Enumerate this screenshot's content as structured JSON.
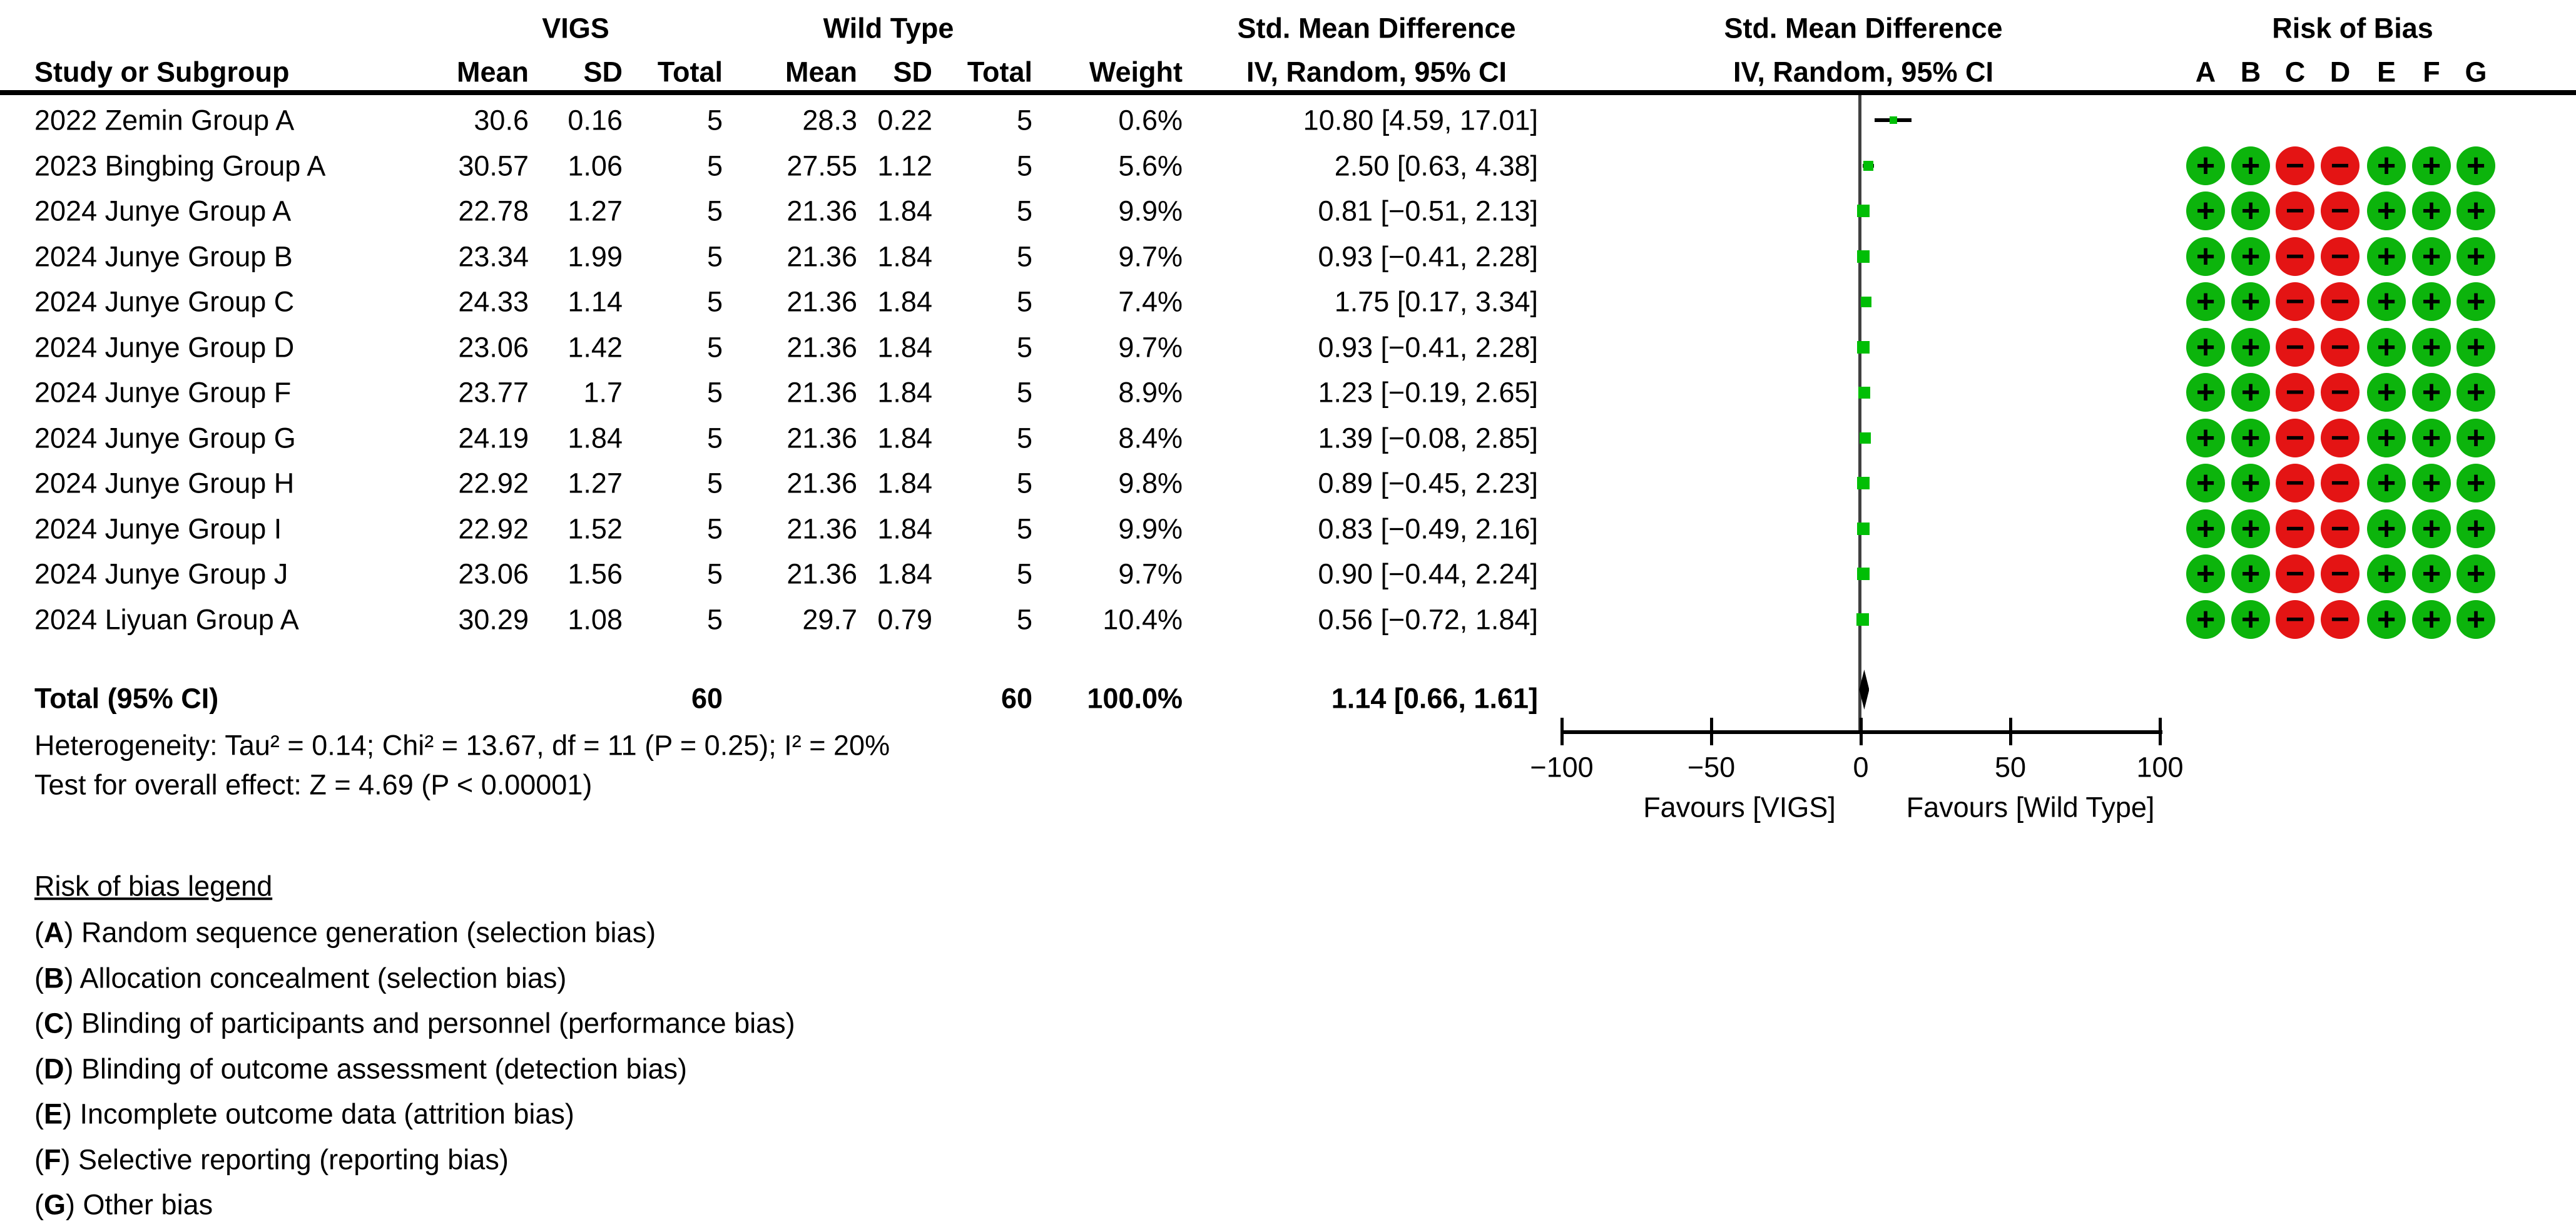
{
  "colors": {
    "rob_low_risk_green": "#0CB40C",
    "rob_high_risk_red": "#E41414",
    "marker_green": "#00BE06",
    "line_black": "#000000",
    "zero_line_gray": "#404040"
  },
  "header": {
    "study_col": "Study or Subgroup",
    "group1": "VIGS",
    "group2": "Wild Type",
    "mean": "Mean",
    "sd": "SD",
    "total": "Total",
    "weight": "Weight",
    "smd_col_line1": "Std. Mean Difference",
    "smd_col_line2": "IV, Random, 95% CI",
    "plot_col_line1": "Std. Mean Difference",
    "plot_col_line2": "IV, Random, 95% CI",
    "rob_title": "Risk of Bias",
    "rob_letters": [
      "A",
      "B",
      "C",
      "D",
      "E",
      "F",
      "G"
    ]
  },
  "chart_data": {
    "type": "scatter",
    "subtype": "forest-plot-meta-analysis",
    "effect_measure": "Std. Mean Difference (IV, Random, 95% CI)",
    "x_axis": {
      "range": [
        -100,
        100
      ],
      "ticks": [
        -100,
        -50,
        0,
        50,
        100
      ],
      "tick_labels": [
        "−100",
        "−50",
        "0",
        "50",
        "100"
      ]
    },
    "favours_left": "Favours [VIGS]",
    "favours_right": "Favours [Wild Type]",
    "studies": [
      {
        "name": "2022 Zemin Group A",
        "vigs": {
          "mean": "30.6",
          "sd": "0.16",
          "total": "5"
        },
        "wild": {
          "mean": "28.3",
          "sd": "0.22",
          "total": "5"
        },
        "weight": "0.6%",
        "weight_value": 0.6,
        "smd": 10.8,
        "ci": [
          4.59,
          17.01
        ],
        "ci_text": "10.80 [4.59, 17.01]",
        "risk_of_bias": null
      },
      {
        "name": "2023 Bingbing Group A",
        "vigs": {
          "mean": "30.57",
          "sd": "1.06",
          "total": "5"
        },
        "wild": {
          "mean": "27.55",
          "sd": "1.12",
          "total": "5"
        },
        "weight": "5.6%",
        "weight_value": 5.6,
        "smd": 2.5,
        "ci": [
          0.63,
          4.38
        ],
        "ci_text": "2.50 [0.63, 4.38]",
        "risk_of_bias": [
          "+",
          "+",
          "-",
          "-",
          "+",
          "+",
          "+"
        ]
      },
      {
        "name": "2024 Junye Group A",
        "vigs": {
          "mean": "22.78",
          "sd": "1.27",
          "total": "5"
        },
        "wild": {
          "mean": "21.36",
          "sd": "1.84",
          "total": "5"
        },
        "weight": "9.9%",
        "weight_value": 9.9,
        "smd": 0.81,
        "ci": [
          -0.51,
          2.13
        ],
        "ci_text": "0.81 [−0.51, 2.13]",
        "risk_of_bias": [
          "+",
          "+",
          "-",
          "-",
          "+",
          "+",
          "+"
        ]
      },
      {
        "name": "2024 Junye Group B",
        "vigs": {
          "mean": "23.34",
          "sd": "1.99",
          "total": "5"
        },
        "wild": {
          "mean": "21.36",
          "sd": "1.84",
          "total": "5"
        },
        "weight": "9.7%",
        "weight_value": 9.7,
        "smd": 0.93,
        "ci": [
          -0.41,
          2.28
        ],
        "ci_text": "0.93 [−0.41, 2.28]",
        "risk_of_bias": [
          "+",
          "+",
          "-",
          "-",
          "+",
          "+",
          "+"
        ]
      },
      {
        "name": "2024 Junye Group C",
        "vigs": {
          "mean": "24.33",
          "sd": "1.14",
          "total": "5"
        },
        "wild": {
          "mean": "21.36",
          "sd": "1.84",
          "total": "5"
        },
        "weight": "7.4%",
        "weight_value": 7.4,
        "smd": 1.75,
        "ci": [
          0.17,
          3.34
        ],
        "ci_text": "1.75 [0.17, 3.34]",
        "risk_of_bias": [
          "+",
          "+",
          "-",
          "-",
          "+",
          "+",
          "+"
        ]
      },
      {
        "name": "2024 Junye Group D",
        "vigs": {
          "mean": "23.06",
          "sd": "1.42",
          "total": "5"
        },
        "wild": {
          "mean": "21.36",
          "sd": "1.84",
          "total": "5"
        },
        "weight": "9.7%",
        "weight_value": 9.7,
        "smd": 0.93,
        "ci": [
          -0.41,
          2.28
        ],
        "ci_text": "0.93 [−0.41, 2.28]",
        "risk_of_bias": [
          "+",
          "+",
          "-",
          "-",
          "+",
          "+",
          "+"
        ]
      },
      {
        "name": "2024 Junye Group F",
        "vigs": {
          "mean": "23.77",
          "sd": "1.7",
          "total": "5"
        },
        "wild": {
          "mean": "21.36",
          "sd": "1.84",
          "total": "5"
        },
        "weight": "8.9%",
        "weight_value": 8.9,
        "smd": 1.23,
        "ci": [
          -0.19,
          2.65
        ],
        "ci_text": "1.23 [−0.19, 2.65]",
        "risk_of_bias": [
          "+",
          "+",
          "-",
          "-",
          "+",
          "+",
          "+"
        ]
      },
      {
        "name": "2024 Junye Group G",
        "vigs": {
          "mean": "24.19",
          "sd": "1.84",
          "total": "5"
        },
        "wild": {
          "mean": "21.36",
          "sd": "1.84",
          "total": "5"
        },
        "weight": "8.4%",
        "weight_value": 8.4,
        "smd": 1.39,
        "ci": [
          -0.08,
          2.85
        ],
        "ci_text": "1.39 [−0.08, 2.85]",
        "risk_of_bias": [
          "+",
          "+",
          "-",
          "-",
          "+",
          "+",
          "+"
        ]
      },
      {
        "name": "2024 Junye Group H",
        "vigs": {
          "mean": "22.92",
          "sd": "1.27",
          "total": "5"
        },
        "wild": {
          "mean": "21.36",
          "sd": "1.84",
          "total": "5"
        },
        "weight": "9.8%",
        "weight_value": 9.8,
        "smd": 0.89,
        "ci": [
          -0.45,
          2.23
        ],
        "ci_text": "0.89 [−0.45, 2.23]",
        "risk_of_bias": [
          "+",
          "+",
          "-",
          "-",
          "+",
          "+",
          "+"
        ]
      },
      {
        "name": "2024 Junye Group I",
        "vigs": {
          "mean": "22.92",
          "sd": "1.52",
          "total": "5"
        },
        "wild": {
          "mean": "21.36",
          "sd": "1.84",
          "total": "5"
        },
        "weight": "9.9%",
        "weight_value": 9.9,
        "smd": 0.83,
        "ci": [
          -0.49,
          2.16
        ],
        "ci_text": "0.83 [−0.49, 2.16]",
        "risk_of_bias": [
          "+",
          "+",
          "-",
          "-",
          "+",
          "+",
          "+"
        ]
      },
      {
        "name": "2024 Junye Group J",
        "vigs": {
          "mean": "23.06",
          "sd": "1.56",
          "total": "5"
        },
        "wild": {
          "mean": "21.36",
          "sd": "1.84",
          "total": "5"
        },
        "weight": "9.7%",
        "weight_value": 9.7,
        "smd": 0.9,
        "ci": [
          -0.44,
          2.24
        ],
        "ci_text": "0.90 [−0.44, 2.24]",
        "risk_of_bias": [
          "+",
          "+",
          "-",
          "-",
          "+",
          "+",
          "+"
        ]
      },
      {
        "name": "2024 Liyuan Group A",
        "vigs": {
          "mean": "30.29",
          "sd": "1.08",
          "total": "5"
        },
        "wild": {
          "mean": "29.7",
          "sd": "0.79",
          "total": "5"
        },
        "weight": "10.4%",
        "weight_value": 10.4,
        "smd": 0.56,
        "ci": [
          -0.72,
          1.84
        ],
        "ci_text": "0.56 [−0.72, 1.84]",
        "risk_of_bias": [
          "+",
          "+",
          "-",
          "-",
          "+",
          "+",
          "+"
        ]
      }
    ],
    "total": {
      "label": "Total (95% CI)",
      "vigs_total": "60",
      "wild_total": "60",
      "weight": "100.0%",
      "smd": 1.14,
      "ci": [
        0.66,
        1.61
      ],
      "ci_text": "1.14 [0.66, 1.61]"
    },
    "heterogeneity": "Heterogeneity: Tau² = 0.14; Chi² = 13.67, df = 11 (P = 0.25); I² = 20%",
    "overall_effect": "Test for overall effect: Z = 4.69 (P < 0.00001)"
  },
  "legend": {
    "title": "Risk of bias legend",
    "items": [
      {
        "letter": "A",
        "text": "Random sequence generation (selection bias)"
      },
      {
        "letter": "B",
        "text": "Allocation concealment (selection bias)"
      },
      {
        "letter": "C",
        "text": "Blinding of participants and personnel (performance bias)"
      },
      {
        "letter": "D",
        "text": "Blinding of outcome assessment (detection bias)"
      },
      {
        "letter": "E",
        "text": "Incomplete outcome data (attrition bias)"
      },
      {
        "letter": "F",
        "text": "Selective reporting (reporting bias)"
      },
      {
        "letter": "G",
        "text": "Other bias"
      }
    ]
  }
}
